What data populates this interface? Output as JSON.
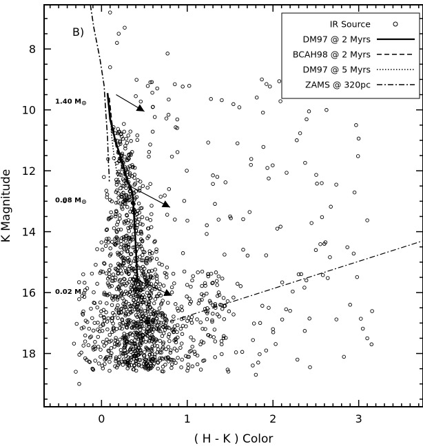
{
  "chart_data": {
    "type": "scatter",
    "panel_label": "B)",
    "xlabel": "( H - K ) Color",
    "ylabel": "K Magnitude",
    "xlim": [
      -0.67,
      3.75
    ],
    "ylim": [
      19.75,
      6.55
    ],
    "y_inverted": true,
    "x_ticks": [
      0,
      1,
      2,
      3
    ],
    "x_tick_labels": [
      "0",
      "1",
      "2",
      "3"
    ],
    "y_ticks": [
      8,
      10,
      12,
      14,
      16,
      18
    ],
    "y_tick_labels": [
      "8",
      "10",
      "12",
      "14",
      "16",
      "18"
    ],
    "grid": false,
    "legend": {
      "position": "top-right",
      "entries": [
        {
          "label": "IR Source",
          "style": "open-circle"
        },
        {
          "label": "DM97 @ 2 Myrs",
          "style": "solid"
        },
        {
          "label": "BCAH98 @ 2 Myrs",
          "style": "dashed"
        },
        {
          "label": "DM97 @ 5 Myrs",
          "style": "dotted"
        },
        {
          "label": "ZAMS @ 320pc",
          "style": "dash-dot"
        }
      ]
    },
    "mass_labels": [
      {
        "text": "1.40 M",
        "sub": "⊙",
        "y": 9.7
      },
      {
        "text": "0.08 M",
        "sub": "⊙",
        "y": 12.95
      },
      {
        "text": "0.02 M",
        "sub": "⊙",
        "y": 15.95
      }
    ],
    "series": [
      {
        "name": "DM97 @ 2 Myrs",
        "style": "solid",
        "x": [
          0.07,
          0.1,
          0.16,
          0.24,
          0.3,
          0.36,
          0.38,
          0.4,
          0.42
        ],
        "y": [
          9.45,
          10.3,
          11.0,
          11.7,
          12.3,
          12.7,
          13.5,
          14.5,
          15.6
        ]
      },
      {
        "name": "BCAH98 @ 2 Myrs",
        "style": "dashed",
        "x": [
          0.09,
          0.12,
          0.17,
          0.24,
          0.31,
          0.37
        ],
        "y": [
          9.6,
          10.4,
          11.2,
          11.9,
          12.5,
          12.9
        ]
      },
      {
        "name": "DM97 @ 5 Myrs",
        "style": "dotted",
        "x": [
          0.1,
          0.12,
          0.15,
          0.19,
          0.25,
          0.3
        ],
        "y": [
          10.0,
          10.9,
          11.6,
          12.2,
          12.7,
          13.0
        ]
      },
      {
        "name": "ZAMS @ 320pc",
        "style": "dash-dot",
        "x": [
          -0.13,
          -0.09,
          -0.02,
          0.03,
          0.05,
          0.07,
          0.08,
          0.09,
          0.09
        ],
        "y": [
          6.55,
          7.3,
          8.3,
          9.2,
          10.1,
          10.9,
          11.7,
          12.2,
          12.35
        ]
      }
    ],
    "reddening_vectors": [
      {
        "from": [
          0.17,
          9.5
        ],
        "to": [
          0.5,
          10.05
        ]
      },
      {
        "from": [
          0.33,
          12.5
        ],
        "to": [
          0.8,
          13.2
        ]
      },
      {
        "from": [
          0.35,
          15.5
        ],
        "to": [
          0.82,
          16.1
        ]
      }
    ],
    "extinction_line": {
      "from": [
        0.8,
        16.95
      ],
      "to": [
        3.75,
        14.3
      ]
    },
    "marker_color": "#000000",
    "line_color": "#000000"
  }
}
